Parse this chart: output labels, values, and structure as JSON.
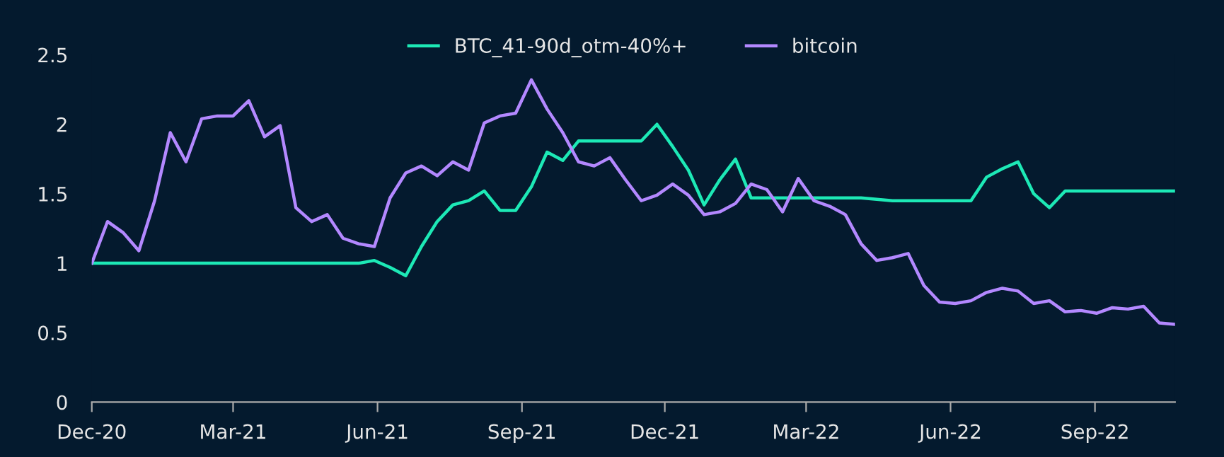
{
  "chart_data": {
    "type": "line",
    "x": [
      "2020-12-01",
      "2020-12-11",
      "2020-12-21",
      "2020-12-31",
      "2021-01-10",
      "2021-01-20",
      "2021-01-30",
      "2021-02-09",
      "2021-02-19",
      "2021-03-01",
      "2021-03-11",
      "2021-03-21",
      "2021-03-31",
      "2021-04-10",
      "2021-04-20",
      "2021-04-30",
      "2021-05-10",
      "2021-05-20",
      "2021-05-30",
      "2021-06-09",
      "2021-06-19",
      "2021-06-29",
      "2021-07-09",
      "2021-07-19",
      "2021-07-29",
      "2021-08-08",
      "2021-08-18",
      "2021-08-28",
      "2021-09-07",
      "2021-09-17",
      "2021-09-27",
      "2021-10-07",
      "2021-10-17",
      "2021-10-27",
      "2021-11-06",
      "2021-11-16",
      "2021-11-26",
      "2021-12-06",
      "2021-12-16",
      "2021-12-26",
      "2022-01-05",
      "2022-01-15",
      "2022-01-25",
      "2022-02-04",
      "2022-02-14",
      "2022-02-24",
      "2022-03-06",
      "2022-03-16",
      "2022-03-26",
      "2022-04-05",
      "2022-04-15",
      "2022-04-25",
      "2022-05-05",
      "2022-05-15",
      "2022-05-25",
      "2022-06-04",
      "2022-06-14",
      "2022-06-24",
      "2022-07-04",
      "2022-07-14",
      "2022-07-24",
      "2022-08-03",
      "2022-08-13",
      "2022-08-23",
      "2022-09-02",
      "2022-09-12",
      "2022-09-22",
      "2022-10-02",
      "2022-10-12",
      "2022-10-22"
    ],
    "series": [
      {
        "name": "BTC_41-90d_otm-40%+",
        "color": "#1de9b6",
        "values": [
          1.0,
          1.0,
          1.0,
          1.0,
          1.0,
          1.0,
          1.0,
          1.0,
          1.0,
          1.0,
          1.0,
          1.0,
          1.0,
          1.0,
          1.0,
          1.0,
          1.0,
          1.0,
          1.02,
          0.97,
          0.91,
          1.12,
          1.3,
          1.42,
          1.45,
          1.52,
          1.38,
          1.38,
          1.55,
          1.8,
          1.74,
          1.88,
          1.88,
          1.88,
          1.88,
          1.88,
          2.0,
          1.84,
          1.67,
          1.42,
          1.6,
          1.75,
          1.47,
          1.47,
          1.47,
          1.47,
          1.47,
          1.47,
          1.47,
          1.47,
          1.46,
          1.45,
          1.45,
          1.45,
          1.45,
          1.45,
          1.45,
          1.62,
          1.68,
          1.73,
          1.5,
          1.4,
          1.52,
          1.52,
          1.52,
          1.52,
          1.52,
          1.52,
          1.52,
          1.52
        ]
      },
      {
        "name": "bitcoin",
        "color": "#b388ff",
        "values": [
          1.0,
          1.3,
          1.22,
          1.09,
          1.45,
          1.94,
          1.73,
          2.04,
          2.06,
          2.06,
          2.17,
          1.91,
          1.99,
          1.4,
          1.3,
          1.35,
          1.18,
          1.14,
          1.12,
          1.47,
          1.65,
          1.7,
          1.63,
          1.73,
          1.67,
          2.01,
          2.06,
          2.08,
          2.32,
          2.11,
          1.94,
          1.73,
          1.7,
          1.76,
          1.6,
          1.45,
          1.49,
          1.57,
          1.49,
          1.35,
          1.37,
          1.43,
          1.57,
          1.53,
          1.37,
          1.61,
          1.45,
          1.41,
          1.35,
          1.14,
          1.02,
          1.04,
          1.07,
          0.84,
          0.72,
          0.71,
          0.73,
          0.79,
          0.82,
          0.8,
          0.71,
          0.73,
          0.65,
          0.66,
          0.64,
          0.68,
          0.67,
          0.69,
          0.57,
          0.56
        ]
      }
    ],
    "xlim": [
      "2020-12-01",
      "2022-10-22"
    ],
    "xticks": [
      {
        "value": "2020-12-01",
        "label": "Dec-20"
      },
      {
        "value": "2021-03-01",
        "label": "Mar-21"
      },
      {
        "value": "2021-06-01",
        "label": "Jun-21"
      },
      {
        "value": "2021-09-01",
        "label": "Sep-21"
      },
      {
        "value": "2021-12-01",
        "label": "Dec-21"
      },
      {
        "value": "2022-03-01",
        "label": "Mar-22"
      },
      {
        "value": "2022-06-01",
        "label": "Jun-22"
      },
      {
        "value": "2022-09-01",
        "label": "Sep-22"
      }
    ],
    "ylim": [
      0,
      2.5
    ],
    "yticks": [
      0,
      0.5,
      1,
      1.5,
      2,
      2.5
    ],
    "grid": false,
    "legend": "top",
    "marker": "none",
    "line_style": "solid"
  }
}
